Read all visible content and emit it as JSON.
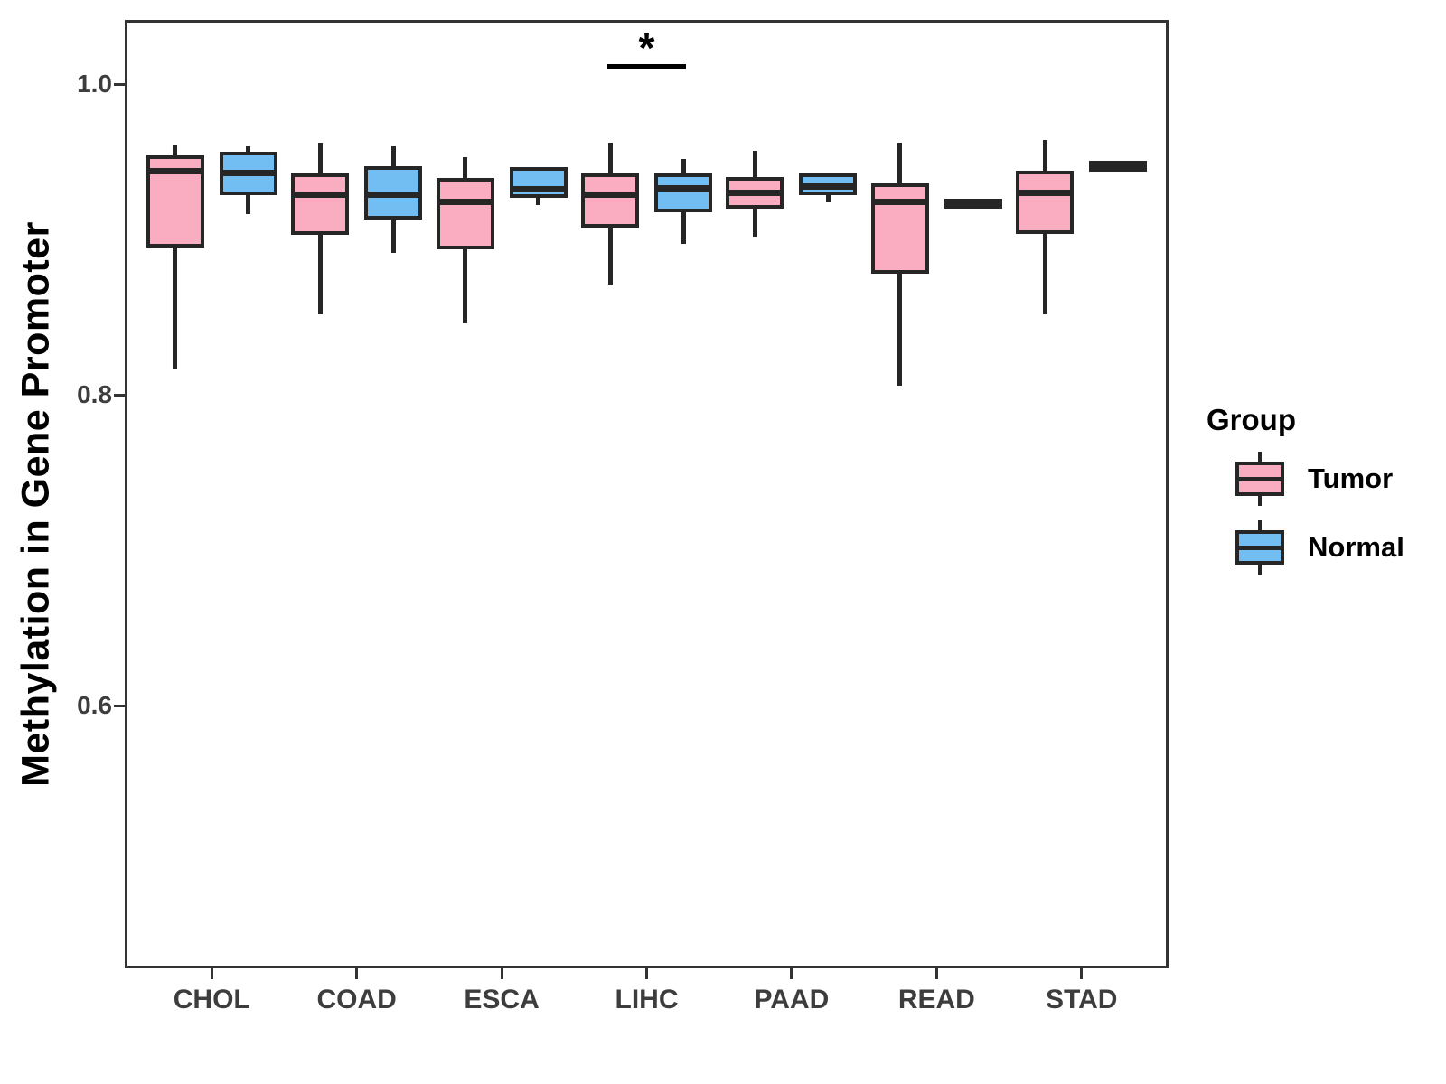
{
  "chart_data": {
    "type": "boxplot",
    "title": "",
    "xlabel": "",
    "ylabel": "Methylation in Gene Promoter",
    "categories": [
      "CHOL",
      "COAD",
      "ESCA",
      "LIHC",
      "PAAD",
      "READ",
      "STAD"
    ],
    "y_ticks": [
      {
        "label": "1.0",
        "value": 1.0
      },
      {
        "label": "0.8",
        "value": 0.8
      },
      {
        "label": "0.6",
        "value": 0.6
      }
    ],
    "ylim": [
      0.43,
      1.04
    ],
    "grid": "off",
    "legend_position": "right",
    "colors": {
      "tumor_fill": "#FAADC0",
      "normal_fill": "#72BDF2",
      "stroke": "#262626",
      "axis_text": "#3d3d3d",
      "panel_border": "#333333"
    },
    "series": [
      {
        "name": "Tumor",
        "fill": "#FAADC0",
        "boxes": [
          {
            "category": "CHOL",
            "low": 0.817,
            "q1": 0.897,
            "median": 0.944,
            "q3": 0.952,
            "high": 0.961
          },
          {
            "category": "COAD",
            "low": 0.852,
            "q1": 0.905,
            "median": 0.929,
            "q3": 0.94,
            "high": 0.962
          },
          {
            "category": "ESCA",
            "low": 0.846,
            "q1": 0.896,
            "median": 0.924,
            "q3": 0.937,
            "high": 0.953
          },
          {
            "category": "LIHC",
            "low": 0.871,
            "q1": 0.91,
            "median": 0.929,
            "q3": 0.94,
            "high": 0.962
          },
          {
            "category": "PAAD",
            "low": 0.902,
            "q1": 0.922,
            "median": 0.93,
            "q3": 0.938,
            "high": 0.957
          },
          {
            "category": "READ",
            "low": 0.806,
            "q1": 0.88,
            "median": 0.924,
            "q3": 0.934,
            "high": 0.962
          },
          {
            "category": "STAD",
            "low": 0.852,
            "q1": 0.906,
            "median": 0.93,
            "q3": 0.942,
            "high": 0.964
          }
        ]
      },
      {
        "name": "Normal",
        "fill": "#72BDF2",
        "boxes": [
          {
            "category": "CHOL",
            "low": 0.916,
            "q1": 0.931,
            "median": 0.943,
            "q3": 0.954,
            "high": 0.96
          },
          {
            "category": "COAD",
            "low": 0.891,
            "q1": 0.915,
            "median": 0.929,
            "q3": 0.945,
            "high": 0.96
          },
          {
            "category": "ESCA",
            "low": 0.922,
            "q1": 0.929,
            "median": 0.932,
            "q3": 0.944,
            "high": 0.944
          },
          {
            "category": "LIHC",
            "low": 0.897,
            "q1": 0.92,
            "median": 0.933,
            "q3": 0.94,
            "high": 0.952
          },
          {
            "category": "PAAD",
            "low": 0.924,
            "q1": 0.931,
            "median": 0.934,
            "q3": 0.94,
            "high": 0.942
          },
          {
            "category": "READ",
            "low": 0.921,
            "q1": 0.922,
            "median": 0.923,
            "q3": 0.924,
            "high": 0.925
          },
          {
            "category": "STAD",
            "low": 0.944,
            "q1": 0.946,
            "median": 0.947,
            "q3": 0.948,
            "high": 0.95
          }
        ]
      }
    ],
    "significance": [
      {
        "category": "LIHC",
        "label": "*"
      }
    ]
  },
  "legend": {
    "title": "Group",
    "items": [
      {
        "label": "Tumor",
        "color": "#FAADC0"
      },
      {
        "label": "Normal",
        "color": "#72BDF2"
      }
    ]
  }
}
